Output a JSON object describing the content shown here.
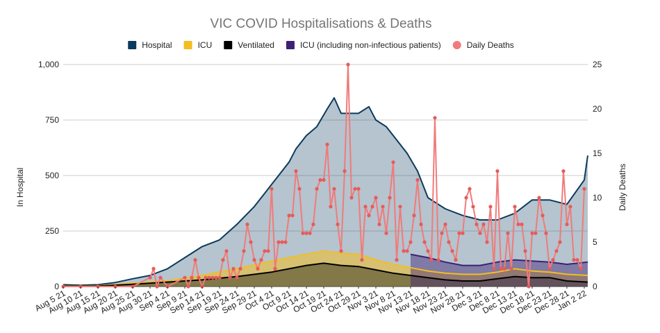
{
  "chart_data": {
    "type": "line",
    "title": "VIC COVID Hospitalisations & Deaths",
    "y_left_label": "In Hospital",
    "y_right_label": "Daily Deaths",
    "y_left_lim": [
      0,
      1000
    ],
    "y_right_lim": [
      0,
      25
    ],
    "y_left_ticks": [
      "0",
      "250",
      "500",
      "750",
      "1,000"
    ],
    "y_right_ticks": [
      "0",
      "5",
      "10",
      "15",
      "20",
      "25"
    ],
    "x_start": "2021-08-05",
    "x_end": "2022-01-03",
    "x_ticks": [
      "Aug 5 21",
      "Aug 10 21",
      "Aug 15 21",
      "Aug 20 21",
      "Aug 25 21",
      "Aug 30 21",
      "Sep 4 21",
      "Sep 9 21",
      "Sep 14 21",
      "Sep 19 21",
      "Sep 24 21",
      "Sep 29 21",
      "Oct 4 21",
      "Oct 9 21",
      "Oct 14 21",
      "Oct 19 21",
      "Oct 24 21",
      "Oct 29 21",
      "Nov 3 21",
      "Nov 8 21",
      "Nov 13 21",
      "Nov 18 21",
      "Nov 23 21",
      "Nov 28 21",
      "Dec 3 21",
      "Dec 8 21",
      "Dec 13 21",
      "Dec 18 21",
      "Dec 23 21",
      "Dec 28 21",
      "Jan 2 22"
    ],
    "grid": true,
    "legend_position": "top",
    "series": [
      {
        "name": "Hospital",
        "axis": "left",
        "color": "#0b3a5c",
        "points": [
          [
            "2021-08-05",
            8
          ],
          [
            "2021-08-10",
            6
          ],
          [
            "2021-08-15",
            8
          ],
          [
            "2021-08-20",
            18
          ],
          [
            "2021-08-25",
            35
          ],
          [
            "2021-08-30",
            50
          ],
          [
            "2021-09-04",
            80
          ],
          [
            "2021-09-09",
            130
          ],
          [
            "2021-09-14",
            180
          ],
          [
            "2021-09-19",
            210
          ],
          [
            "2021-09-24",
            280
          ],
          [
            "2021-09-29",
            360
          ],
          [
            "2021-10-04",
            460
          ],
          [
            "2021-10-09",
            560
          ],
          [
            "2021-10-11",
            620
          ],
          [
            "2021-10-14",
            680
          ],
          [
            "2021-10-17",
            720
          ],
          [
            "2021-10-20",
            800
          ],
          [
            "2021-10-22",
            850
          ],
          [
            "2021-10-24",
            780
          ],
          [
            "2021-10-29",
            780
          ],
          [
            "2021-11-01",
            810
          ],
          [
            "2021-11-03",
            750
          ],
          [
            "2021-11-06",
            720
          ],
          [
            "2021-11-09",
            660
          ],
          [
            "2021-11-12",
            600
          ],
          [
            "2021-11-15",
            520
          ],
          [
            "2021-11-18",
            400
          ],
          [
            "2021-11-23",
            350
          ],
          [
            "2021-11-28",
            320
          ],
          [
            "2021-12-03",
            300
          ],
          [
            "2021-12-08",
            300
          ],
          [
            "2021-12-13",
            330
          ],
          [
            "2021-12-18",
            390
          ],
          [
            "2021-12-23",
            390
          ],
          [
            "2021-12-28",
            370
          ],
          [
            "2022-01-02",
            480
          ],
          [
            "2022-01-03",
            590
          ]
        ]
      },
      {
        "name": "ICU",
        "axis": "left",
        "color": "#f2be22",
        "points": [
          [
            "2021-08-05",
            3
          ],
          [
            "2021-08-15",
            3
          ],
          [
            "2021-08-25",
            15
          ],
          [
            "2021-09-04",
            25
          ],
          [
            "2021-09-14",
            50
          ],
          [
            "2021-09-24",
            80
          ],
          [
            "2021-10-04",
            115
          ],
          [
            "2021-10-14",
            145
          ],
          [
            "2021-10-19",
            160
          ],
          [
            "2021-10-24",
            150
          ],
          [
            "2021-10-29",
            145
          ],
          [
            "2021-11-03",
            120
          ],
          [
            "2021-11-08",
            100
          ],
          [
            "2021-11-13",
            85
          ],
          [
            "2021-11-18",
            70
          ],
          [
            "2021-11-23",
            60
          ],
          [
            "2021-11-28",
            55
          ],
          [
            "2021-12-03",
            55
          ],
          [
            "2021-12-08",
            65
          ],
          [
            "2021-12-13",
            80
          ],
          [
            "2021-12-18",
            70
          ],
          [
            "2021-12-23",
            65
          ],
          [
            "2021-12-28",
            55
          ],
          [
            "2022-01-03",
            50
          ]
        ]
      },
      {
        "name": "Ventilated",
        "axis": "left",
        "color": "#000000",
        "points": [
          [
            "2021-08-05",
            2
          ],
          [
            "2021-08-15",
            2
          ],
          [
            "2021-08-25",
            10
          ],
          [
            "2021-09-04",
            20
          ],
          [
            "2021-09-14",
            30
          ],
          [
            "2021-09-24",
            45
          ],
          [
            "2021-10-04",
            65
          ],
          [
            "2021-10-14",
            95
          ],
          [
            "2021-10-19",
            105
          ],
          [
            "2021-10-24",
            95
          ],
          [
            "2021-10-29",
            90
          ],
          [
            "2021-11-03",
            75
          ],
          [
            "2021-11-08",
            60
          ],
          [
            "2021-11-13",
            50
          ],
          [
            "2021-11-18",
            40
          ],
          [
            "2021-11-23",
            30
          ],
          [
            "2021-11-28",
            25
          ],
          [
            "2021-12-03",
            25
          ],
          [
            "2021-12-08",
            35
          ],
          [
            "2021-12-13",
            45
          ],
          [
            "2021-12-18",
            40
          ],
          [
            "2021-12-23",
            40
          ],
          [
            "2021-12-28",
            25
          ],
          [
            "2022-01-03",
            20
          ]
        ]
      },
      {
        "name": "ICU (including non-infectious patients)",
        "axis": "left",
        "color": "#3d2175",
        "points": [
          [
            "2021-11-13",
            145
          ],
          [
            "2021-11-18",
            130
          ],
          [
            "2021-11-23",
            110
          ],
          [
            "2021-11-28",
            95
          ],
          [
            "2021-12-03",
            95
          ],
          [
            "2021-12-08",
            110
          ],
          [
            "2021-12-13",
            120
          ],
          [
            "2021-12-18",
            115
          ],
          [
            "2021-12-23",
            110
          ],
          [
            "2021-12-28",
            100
          ],
          [
            "2022-01-03",
            110
          ]
        ]
      },
      {
        "name": "Daily Deaths",
        "axis": "right",
        "color": "#f07b7b",
        "points": [
          [
            "2021-08-05",
            0
          ],
          [
            "2021-08-10",
            0
          ],
          [
            "2021-08-15",
            0
          ],
          [
            "2021-08-20",
            0
          ],
          [
            "2021-08-25",
            0
          ],
          [
            "2021-08-30",
            1
          ],
          [
            "2021-08-31",
            2
          ],
          [
            "2021-09-01",
            0
          ],
          [
            "2021-09-02",
            1
          ],
          [
            "2021-09-04",
            0
          ],
          [
            "2021-09-09",
            1
          ],
          [
            "2021-09-10",
            0
          ],
          [
            "2021-09-11",
            1
          ],
          [
            "2021-09-12",
            3
          ],
          [
            "2021-09-13",
            1
          ],
          [
            "2021-09-14",
            0
          ],
          [
            "2021-09-15",
            1
          ],
          [
            "2021-09-16",
            1
          ],
          [
            "2021-09-17",
            1
          ],
          [
            "2021-09-18",
            1
          ],
          [
            "2021-09-19",
            1
          ],
          [
            "2021-09-20",
            3
          ],
          [
            "2021-09-21",
            4
          ],
          [
            "2021-09-22",
            1
          ],
          [
            "2021-09-23",
            2
          ],
          [
            "2021-09-24",
            1
          ],
          [
            "2021-09-25",
            2
          ],
          [
            "2021-09-26",
            4
          ],
          [
            "2021-09-27",
            7
          ],
          [
            "2021-09-28",
            5
          ],
          [
            "2021-09-29",
            3
          ],
          [
            "2021-09-30",
            2
          ],
          [
            "2021-10-01",
            3
          ],
          [
            "2021-10-02",
            4
          ],
          [
            "2021-10-03",
            4
          ],
          [
            "2021-10-04",
            11
          ],
          [
            "2021-10-05",
            2
          ],
          [
            "2021-10-06",
            5
          ],
          [
            "2021-10-07",
            5
          ],
          [
            "2021-10-08",
            5
          ],
          [
            "2021-10-09",
            8
          ],
          [
            "2021-10-10",
            8
          ],
          [
            "2021-10-11",
            13
          ],
          [
            "2021-10-12",
            11
          ],
          [
            "2021-10-13",
            6
          ],
          [
            "2021-10-14",
            6
          ],
          [
            "2021-10-15",
            6
          ],
          [
            "2021-10-16",
            7
          ],
          [
            "2021-10-17",
            11
          ],
          [
            "2021-10-18",
            12
          ],
          [
            "2021-10-19",
            12
          ],
          [
            "2021-10-20",
            16
          ],
          [
            "2021-10-21",
            9
          ],
          [
            "2021-10-22",
            11
          ],
          [
            "2021-10-23",
            7
          ],
          [
            "2021-10-24",
            4
          ],
          [
            "2021-10-25",
            13
          ],
          [
            "2021-10-26",
            25
          ],
          [
            "2021-10-27",
            10
          ],
          [
            "2021-10-28",
            11
          ],
          [
            "2021-10-29",
            11
          ],
          [
            "2021-10-30",
            3
          ],
          [
            "2021-10-31",
            9
          ],
          [
            "2021-11-01",
            8
          ],
          [
            "2021-11-02",
            9
          ],
          [
            "2021-11-03",
            10
          ],
          [
            "2021-11-04",
            7
          ],
          [
            "2021-11-05",
            9
          ],
          [
            "2021-11-06",
            6
          ],
          [
            "2021-11-07",
            10
          ],
          [
            "2021-11-08",
            14
          ],
          [
            "2021-11-09",
            3
          ],
          [
            "2021-11-10",
            9
          ],
          [
            "2021-11-11",
            4
          ],
          [
            "2021-11-12",
            4
          ],
          [
            "2021-11-13",
            5
          ],
          [
            "2021-11-14",
            8
          ],
          [
            "2021-11-15",
            12
          ],
          [
            "2021-11-16",
            7
          ],
          [
            "2021-11-17",
            5
          ],
          [
            "2021-11-18",
            4
          ],
          [
            "2021-11-19",
            3
          ],
          [
            "2021-11-20",
            19
          ],
          [
            "2021-11-21",
            3
          ],
          [
            "2021-11-22",
            6
          ],
          [
            "2021-11-23",
            7
          ],
          [
            "2021-11-24",
            5
          ],
          [
            "2021-11-25",
            4
          ],
          [
            "2021-11-26",
            3
          ],
          [
            "2021-11-27",
            6
          ],
          [
            "2021-11-28",
            6
          ],
          [
            "2021-11-29",
            10
          ],
          [
            "2021-11-30",
            11
          ],
          [
            "2021-12-01",
            9
          ],
          [
            "2021-12-02",
            7
          ],
          [
            "2021-12-03",
            6
          ],
          [
            "2021-12-04",
            7
          ],
          [
            "2021-12-05",
            5
          ],
          [
            "2021-12-06",
            9
          ],
          [
            "2021-12-07",
            2
          ],
          [
            "2021-12-08",
            13
          ],
          [
            "2021-12-09",
            2
          ],
          [
            "2021-12-10",
            2
          ],
          [
            "2021-12-11",
            6
          ],
          [
            "2021-12-12",
            2
          ],
          [
            "2021-12-13",
            9
          ],
          [
            "2021-12-14",
            7
          ],
          [
            "2021-12-15",
            7
          ],
          [
            "2021-12-16",
            4
          ],
          [
            "2021-12-17",
            0
          ],
          [
            "2021-12-18",
            6
          ],
          [
            "2021-12-19",
            6
          ],
          [
            "2021-12-20",
            10
          ],
          [
            "2021-12-21",
            8
          ],
          [
            "2021-12-22",
            6
          ],
          [
            "2021-12-23",
            2
          ],
          [
            "2021-12-24",
            3
          ],
          [
            "2021-12-25",
            4
          ],
          [
            "2021-12-26",
            5
          ],
          [
            "2021-12-27",
            13
          ],
          [
            "2021-12-28",
            7
          ],
          [
            "2021-12-29",
            9
          ],
          [
            "2021-12-30",
            3
          ],
          [
            "2021-12-31",
            3
          ],
          [
            "2022-01-01",
            2
          ],
          [
            "2022-01-02",
            11
          ]
        ]
      }
    ]
  }
}
